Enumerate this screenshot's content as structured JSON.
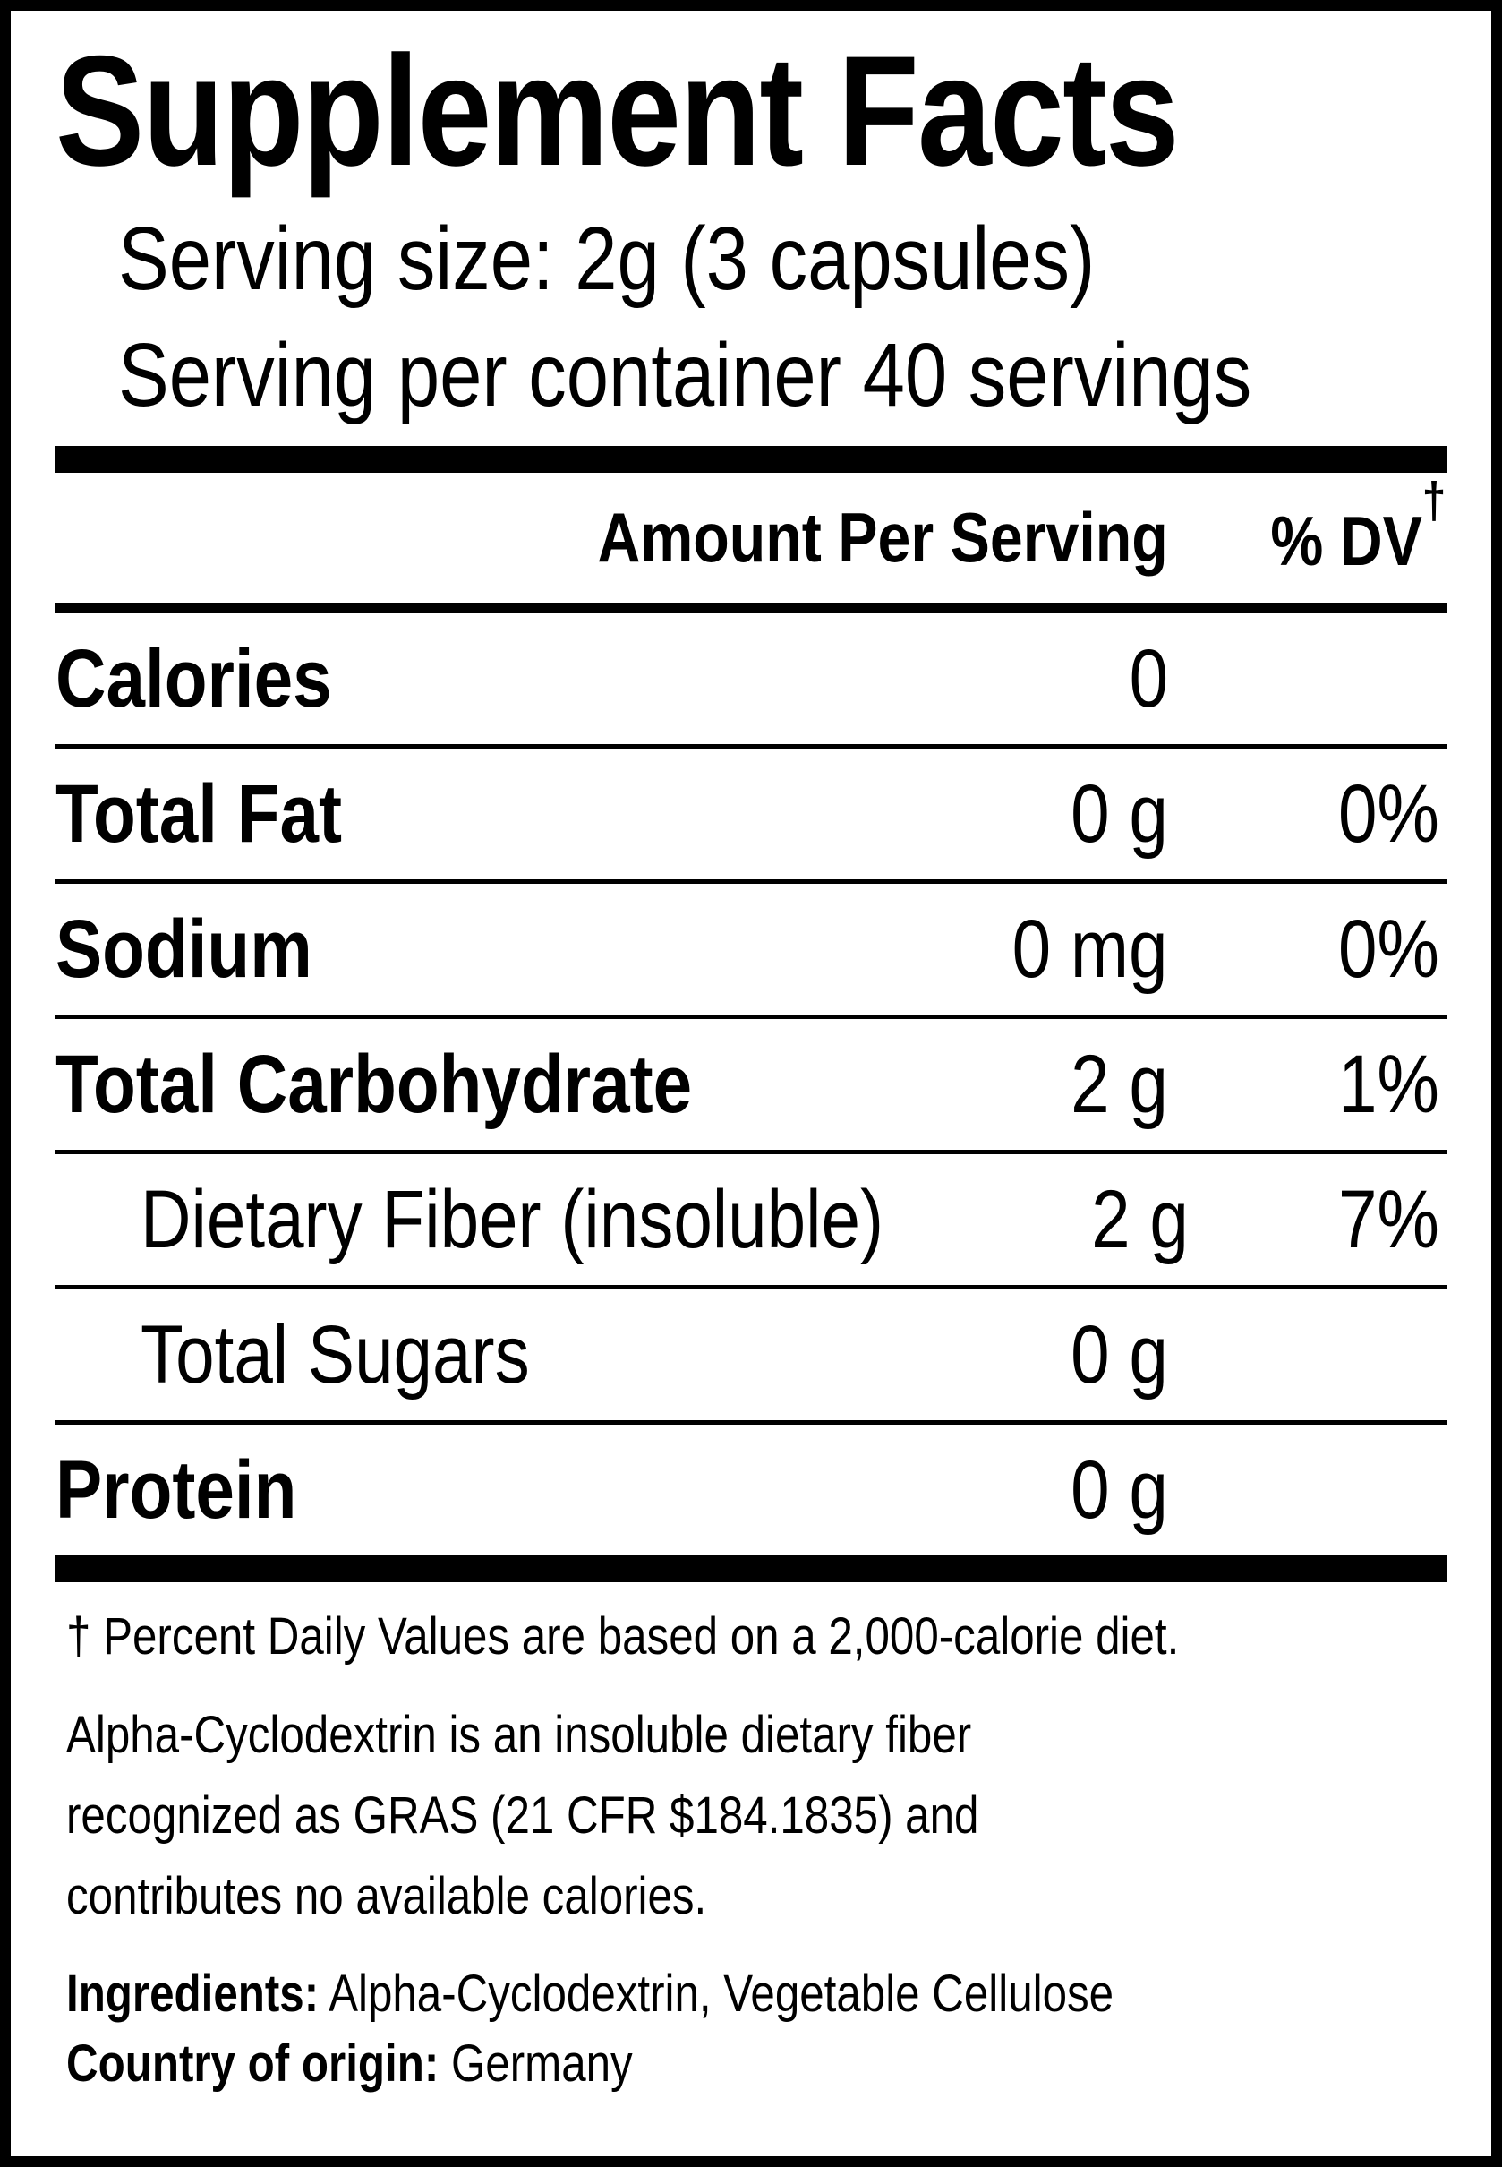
{
  "label": {
    "title": "Supplement Facts",
    "serving_size": "Serving size: 2g (3 capsules)",
    "servings_per_container": "Serving per container 40 servings"
  },
  "table": {
    "amount_header": "Amount Per Serving",
    "dv_header": "% DV",
    "dv_dagger": "†",
    "rows": [
      {
        "name": "Calories",
        "amount": "0",
        "dv": ""
      },
      {
        "name": "Total Fat",
        "amount": "0 g",
        "dv": "0%"
      },
      {
        "name": "Sodium",
        "amount": "0 mg",
        "dv": "0%"
      },
      {
        "name": "Total Carbohydrate",
        "amount": "2 g",
        "dv": "1%"
      },
      {
        "name": "Dietary Fiber (insoluble)",
        "amount": "2 g",
        "dv": "7%"
      },
      {
        "name": "Total Sugars",
        "amount": "0 g",
        "dv": ""
      },
      {
        "name": "Protein",
        "amount": "0 g",
        "dv": ""
      }
    ]
  },
  "footnote": {
    "daily_value_note": "† Percent Daily Values are based on a 2,000-calorie diet.",
    "description": "Alpha-Cyclodextrin is an insoluble dietary fiber recognized as GRAS (21 CFR $184.1835) and contributes no available calories."
  },
  "ingredients": {
    "label": "Ingredients:",
    "value": "Alpha-Cyclodextrin, Vegetable Cellulose"
  },
  "origin": {
    "label": "Country of origin:",
    "value": "Germany"
  },
  "colors": {
    "text": "#000000",
    "background": "#ffffff",
    "border": "#000000"
  }
}
